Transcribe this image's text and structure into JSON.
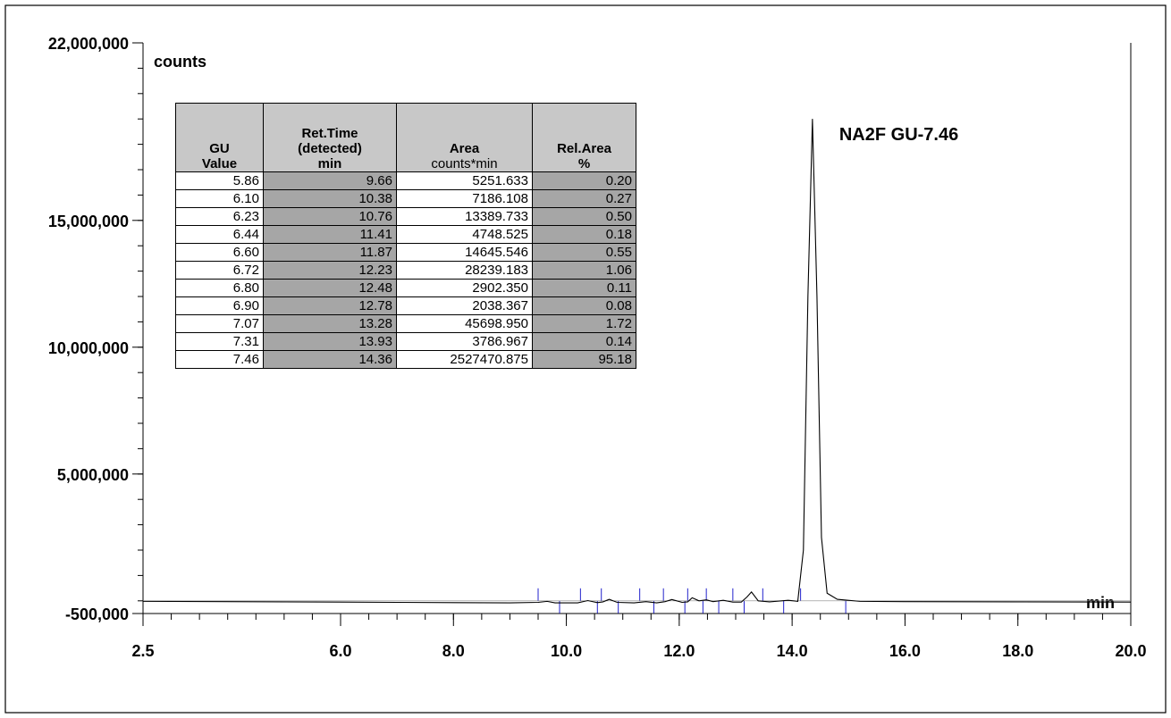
{
  "chart_data": {
    "type": "line",
    "title": "",
    "xlabel": "min",
    "ylabel": "counts",
    "xlim": [
      2.5,
      20.0
    ],
    "ylim": [
      -500000,
      22000000
    ],
    "xticks": [
      {
        "value": 2.5,
        "label": "2.5"
      },
      {
        "value": 6.0,
        "label": "6.0"
      },
      {
        "value": 8.0,
        "label": "8.0"
      },
      {
        "value": 10.0,
        "label": "10.0"
      },
      {
        "value": 12.0,
        "label": "12.0"
      },
      {
        "value": 14.0,
        "label": "14.0"
      },
      {
        "value": 16.0,
        "label": "16.0"
      },
      {
        "value": 18.0,
        "label": "18.0"
      },
      {
        "value": 20.0,
        "label": "20.0"
      }
    ],
    "yticks": [
      {
        "value": 22000000,
        "label": "22,000,000"
      },
      {
        "value": 15000000,
        "label": "15,000,000"
      },
      {
        "value": 10000000,
        "label": "10,000,000"
      },
      {
        "value": 5000000,
        "label": "5,000,000"
      },
      {
        "value": -500000,
        "label": "-500,000"
      }
    ],
    "grid": false,
    "series": [
      {
        "x": [
          2.5,
          5.0,
          7.0,
          9.0,
          9.5,
          9.66,
          9.8,
          10.2,
          10.38,
          10.55,
          10.65,
          10.76,
          10.9,
          11.2,
          11.41,
          11.6,
          11.75,
          11.87,
          12.05,
          12.15,
          12.23,
          12.35,
          12.48,
          12.6,
          12.78,
          12.95,
          13.1,
          13.2,
          13.28,
          13.4,
          13.6,
          13.93,
          14.1,
          14.2,
          14.28,
          14.36,
          14.44,
          14.52,
          14.62,
          14.8,
          15.2,
          16.0,
          18.0,
          20.0
        ],
        "y": [
          -20000,
          -40000,
          -60000,
          -80000,
          -60000,
          -20000,
          -80000,
          -80000,
          10000,
          -70000,
          -40000,
          60000,
          -60000,
          -80000,
          -30000,
          -80000,
          -30000,
          50000,
          -60000,
          -40000,
          120000,
          0,
          40000,
          -30000,
          20000,
          -50000,
          -50000,
          150000,
          350000,
          0,
          -40000,
          20000,
          -20000,
          2000000,
          12000000,
          19000000,
          12000000,
          2500000,
          300000,
          60000,
          -20000,
          -30000,
          -40000,
          -50000
        ]
      }
    ],
    "integration_marks": [
      9.5,
      9.88,
      10.25,
      10.55,
      10.62,
      10.92,
      11.3,
      11.55,
      11.72,
      12.1,
      12.15,
      12.42,
      12.48,
      12.7,
      12.95,
      13.15,
      13.48,
      13.85,
      14.15,
      14.95
    ],
    "annotations": [
      {
        "text": "NA2F GU-7.46",
        "x": 14.36,
        "y": 19000000
      }
    ],
    "table": {
      "headers": [
        {
          "lines": [
            "GU",
            "Value"
          ],
          "unit": ""
        },
        {
          "lines": [
            "Ret.Time",
            "(detected)",
            "min"
          ],
          "unit": ""
        },
        {
          "lines": [
            "Area"
          ],
          "unit": "counts*min"
        },
        {
          "lines": [
            "Rel.Area",
            "%"
          ],
          "unit": ""
        }
      ],
      "rows": [
        [
          "5.86",
          "9.66",
          "5251.633",
          "0.20"
        ],
        [
          "6.10",
          "10.38",
          "7186.108",
          "0.27"
        ],
        [
          "6.23",
          "10.76",
          "13389.733",
          "0.50"
        ],
        [
          "6.44",
          "11.41",
          "4748.525",
          "0.18"
        ],
        [
          "6.60",
          "11.87",
          "14645.546",
          "0.55"
        ],
        [
          "6.72",
          "12.23",
          "28239.183",
          "1.06"
        ],
        [
          "6.80",
          "12.48",
          "2902.350",
          "0.11"
        ],
        [
          "6.90",
          "12.78",
          "2038.367",
          "0.08"
        ],
        [
          "7.07",
          "13.28",
          "45698.950",
          "1.72"
        ],
        [
          "7.31",
          "13.93",
          "3786.967",
          "0.14"
        ],
        [
          "7.46",
          "14.36",
          "2527470.875",
          "95.18"
        ]
      ]
    }
  }
}
